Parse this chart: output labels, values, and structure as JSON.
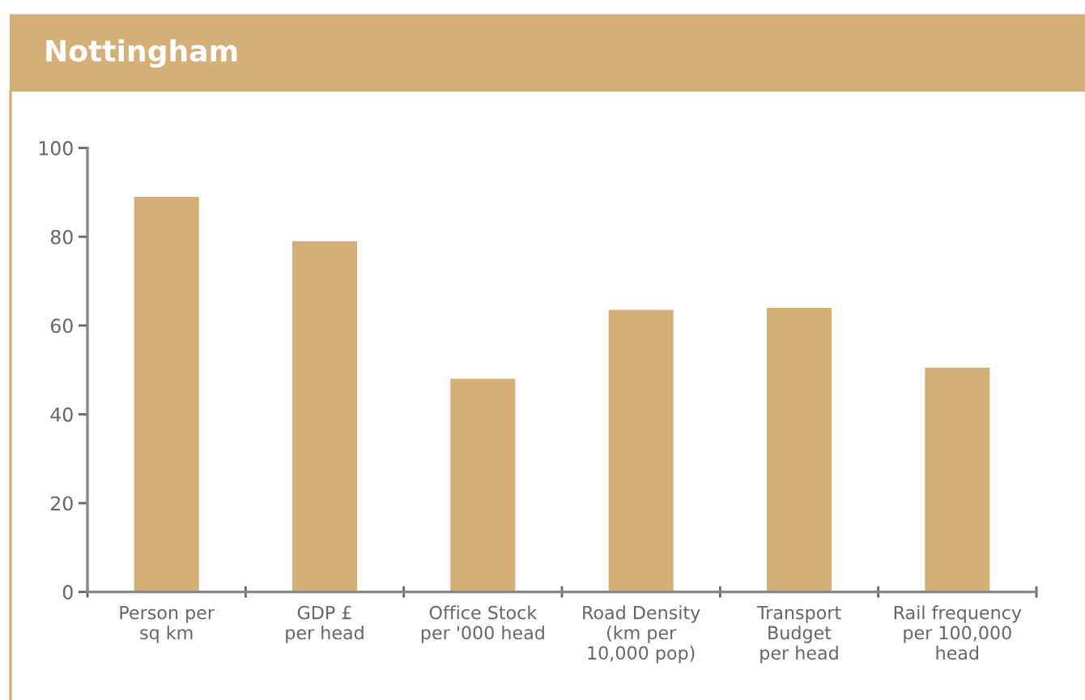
{
  "chart_data": {
    "type": "bar",
    "title": "Nottingham",
    "categories": [
      "Person per\nsq km",
      "GDP £\nper head",
      "Office Stock\nper '000 head",
      "Road Density\n(km per\n10,000 pop)",
      "Transport\nBudget\nper head",
      "Rail frequency\nper 100,000\nhead"
    ],
    "values": [
      89,
      79,
      48,
      63.5,
      64,
      50.5
    ],
    "color": "#d4b078",
    "ylim": [
      0,
      100
    ],
    "yticks": [
      0,
      20,
      40,
      60,
      80,
      100
    ]
  }
}
